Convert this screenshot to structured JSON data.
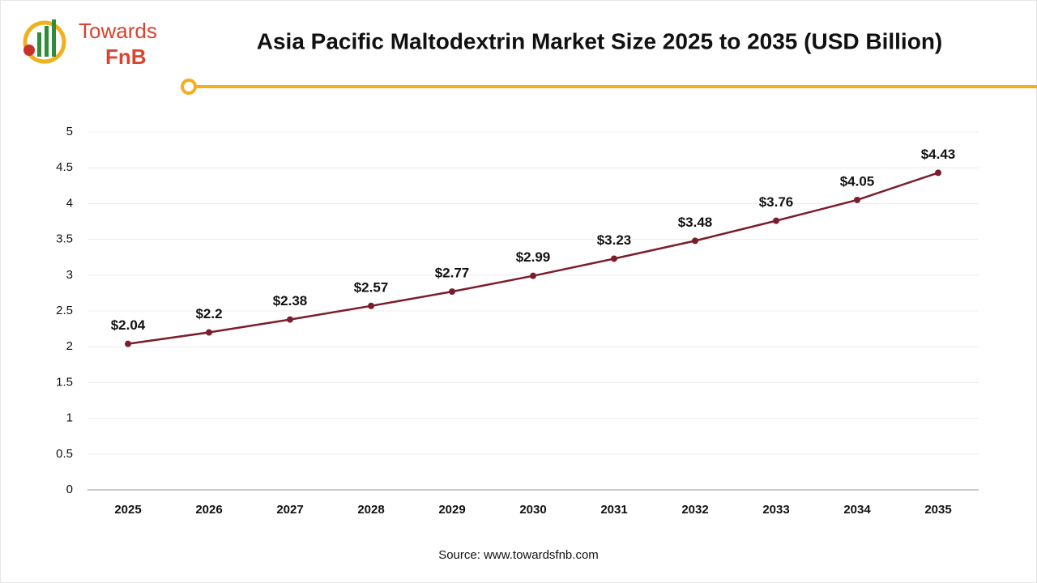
{
  "logo": {
    "line1": "Towards",
    "line2": "FnB"
  },
  "chart_data": {
    "type": "line",
    "title": "Asia Pacific Maltodextrin Market Size 2025 to 2035 (USD Billion)",
    "source": "Source: www.towardsfnb.com",
    "categories": [
      "2025",
      "2026",
      "2027",
      "2028",
      "2029",
      "2030",
      "2031",
      "2032",
      "2033",
      "2034",
      "2035"
    ],
    "values": [
      2.04,
      2.2,
      2.38,
      2.57,
      2.77,
      2.99,
      3.23,
      3.48,
      3.76,
      4.05,
      4.43
    ],
    "value_labels": [
      "$2.04",
      "$2.2",
      "$2.38",
      "$2.57",
      "$2.77",
      "$2.99",
      "$3.23",
      "$3.48",
      "$3.76",
      "$4.05",
      "$4.43"
    ],
    "color": "#7b1e2b",
    "ylim": [
      0,
      5
    ],
    "yticks": [
      0,
      0.5,
      1,
      1.5,
      2,
      2.5,
      3,
      3.5,
      4,
      4.5,
      5
    ],
    "grid": true
  }
}
